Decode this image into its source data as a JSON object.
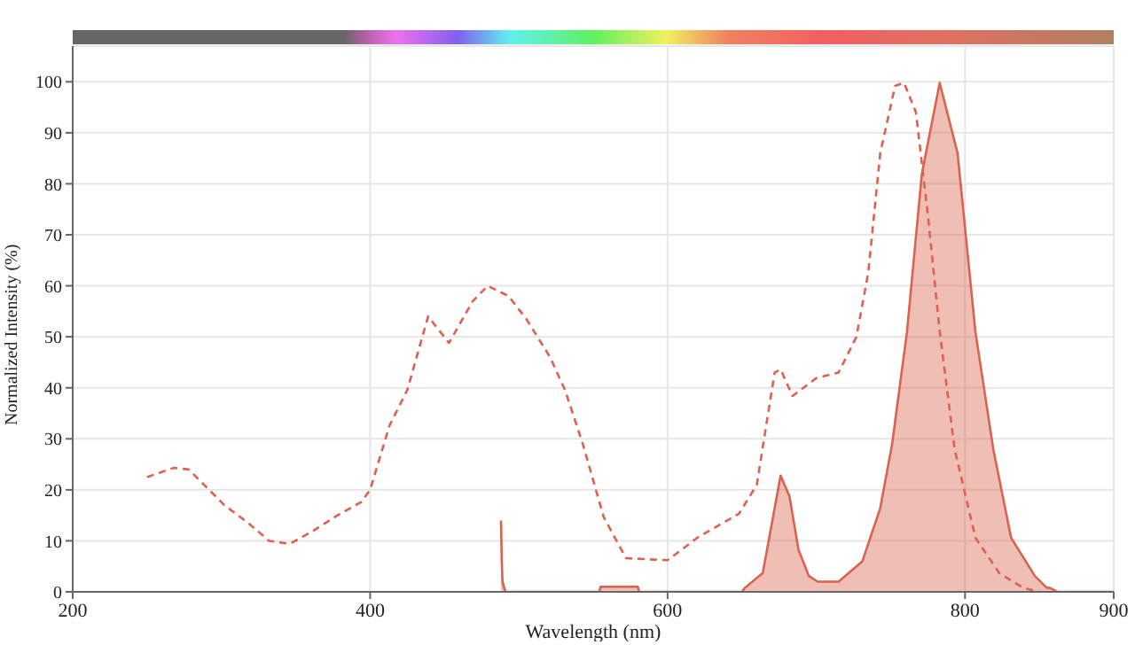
{
  "chart_data": {
    "type": "line",
    "xlabel": "Wavelength (nm)",
    "ylabel": "Normalized Intensity (%)",
    "xlim": [
      200,
      900
    ],
    "xticks": [
      200,
      400,
      600,
      800,
      900
    ],
    "ylim": [
      0,
      107
    ],
    "yticks": [
      0,
      10,
      20,
      30,
      40,
      50,
      60,
      70,
      80,
      90,
      100
    ],
    "grid": true,
    "legend": false,
    "series": [
      {
        "line_style": "dashed",
        "color": "#e0604f",
        "x": [
          250,
          268,
          278,
          302,
          318,
          332,
          346,
          362,
          378,
          394,
          400,
          413,
          425,
          439,
          453,
          469,
          479,
          493,
          505,
          521,
          531,
          543,
          557,
          572,
          600,
          620,
          648,
          660,
          672,
          676,
          684,
          700,
          715,
          727,
          735,
          743,
          753,
          759,
          767,
          775,
          783,
          793,
          807,
          823,
          839,
          850
        ],
        "values": [
          22.5,
          24.3,
          24,
          17,
          13.5,
          10,
          9.4,
          12,
          15,
          17.6,
          20,
          32.6,
          39.6,
          54,
          48.8,
          57,
          60,
          58,
          53.5,
          46,
          39.6,
          29,
          14.7,
          6.6,
          6.2,
          10.6,
          15.3,
          21,
          43,
          43.6,
          38.4,
          41.9,
          43,
          50,
          62.7,
          86,
          99.2,
          99.8,
          94,
          74,
          51,
          28,
          10.6,
          3.7,
          0.8,
          0
        ]
      },
      {
        "type": "area",
        "line_style": "solid",
        "color": "#d9634f",
        "x": [
          488,
          488.5,
          489,
          491,
          554,
          555,
          580,
          581,
          650,
          652,
          664,
          672,
          676,
          682,
          688,
          695,
          701,
          715,
          719,
          731,
          743,
          751,
          761,
          771,
          783,
          795,
          807,
          819,
          831,
          847,
          855,
          857,
          862,
          900
        ],
        "values": [
          14,
          6,
          2,
          0,
          0,
          1,
          1,
          0,
          0,
          0.8,
          3.7,
          16.4,
          22.8,
          18.7,
          8.3,
          3.1,
          2,
          2,
          3,
          6,
          16.4,
          29,
          51,
          82,
          99.8,
          86,
          51,
          28,
          10.6,
          3.1,
          0.8,
          0.8,
          0,
          0
        ]
      }
    ]
  }
}
